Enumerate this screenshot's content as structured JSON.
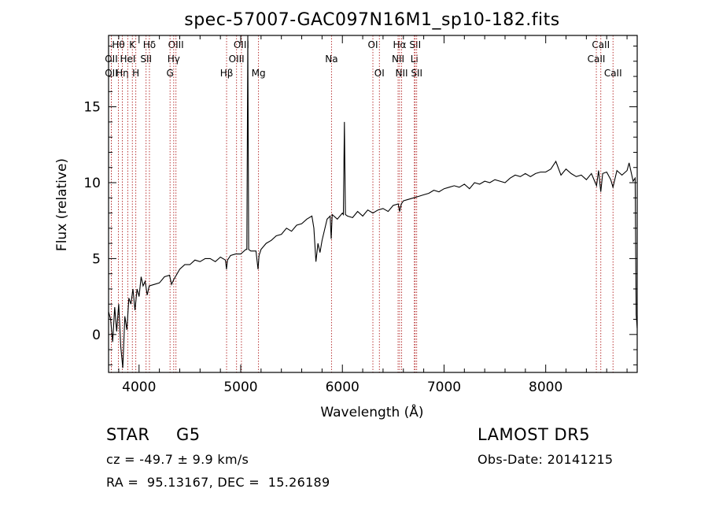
{
  "chart_data": {
    "type": "line",
    "title": "spec-57007-GAC097N16M1_sp10-182.fits",
    "xlabel": "Wavelength (Å)",
    "ylabel": "Flux (relative)",
    "xlim": [
      3700,
      8900
    ],
    "ylim": [
      -2.5,
      19.7
    ],
    "xticks": [
      4000,
      5000,
      6000,
      7000,
      8000
    ],
    "yticks": [
      0,
      5,
      10,
      15
    ],
    "grid": false,
    "series": [
      {
        "name": "",
        "points": [
          [
            3700,
            1.5
          ],
          [
            3720,
            1.0
          ],
          [
            3740,
            -0.5
          ],
          [
            3760,
            1.8
          ],
          [
            3780,
            0.2
          ],
          [
            3800,
            2.0
          ],
          [
            3820,
            -0.8
          ],
          [
            3840,
            -2.2
          ],
          [
            3860,
            1.2
          ],
          [
            3880,
            0.3
          ],
          [
            3900,
            2.4
          ],
          [
            3920,
            2.0
          ],
          [
            3940,
            3.0
          ],
          [
            3960,
            1.6
          ],
          [
            3980,
            3.0
          ],
          [
            4000,
            2.5
          ],
          [
            4020,
            3.8
          ],
          [
            4040,
            3.2
          ],
          [
            4060,
            3.5
          ],
          [
            4080,
            2.6
          ],
          [
            4100,
            3.2
          ],
          [
            4150,
            3.3
          ],
          [
            4200,
            3.4
          ],
          [
            4250,
            3.8
          ],
          [
            4300,
            3.9
          ],
          [
            4320,
            3.3
          ],
          [
            4340,
            3.6
          ],
          [
            4400,
            4.3
          ],
          [
            4450,
            4.6
          ],
          [
            4500,
            4.6
          ],
          [
            4550,
            4.9
          ],
          [
            4600,
            4.8
          ],
          [
            4650,
            5.0
          ],
          [
            4700,
            5.0
          ],
          [
            4750,
            4.8
          ],
          [
            4800,
            5.1
          ],
          [
            4850,
            4.9
          ],
          [
            4860,
            4.3
          ],
          [
            4870,
            4.9
          ],
          [
            4900,
            5.2
          ],
          [
            4950,
            5.3
          ],
          [
            5000,
            5.3
          ],
          [
            5050,
            5.6
          ],
          [
            5060,
            5.6
          ],
          [
            5070,
            19.7
          ],
          [
            5078,
            5.6
          ],
          [
            5100,
            5.5
          ],
          [
            5150,
            5.5
          ],
          [
            5170,
            4.3
          ],
          [
            5180,
            5.2
          ],
          [
            5200,
            5.6
          ],
          [
            5250,
            6.0
          ],
          [
            5300,
            6.2
          ],
          [
            5350,
            6.5
          ],
          [
            5400,
            6.6
          ],
          [
            5450,
            7.0
          ],
          [
            5500,
            6.8
          ],
          [
            5550,
            7.2
          ],
          [
            5600,
            7.3
          ],
          [
            5650,
            7.6
          ],
          [
            5700,
            7.8
          ],
          [
            5720,
            7.0
          ],
          [
            5740,
            4.8
          ],
          [
            5760,
            6.0
          ],
          [
            5780,
            5.4
          ],
          [
            5800,
            6.2
          ],
          [
            5850,
            7.6
          ],
          [
            5880,
            7.8
          ],
          [
            5890,
            6.3
          ],
          [
            5900,
            7.9
          ],
          [
            5950,
            7.6
          ],
          [
            6000,
            8.0
          ],
          [
            6010,
            7.9
          ],
          [
            6020,
            14.0
          ],
          [
            6030,
            7.9
          ],
          [
            6050,
            7.8
          ],
          [
            6100,
            7.7
          ],
          [
            6150,
            8.1
          ],
          [
            6200,
            7.8
          ],
          [
            6250,
            8.2
          ],
          [
            6300,
            8.0
          ],
          [
            6350,
            8.2
          ],
          [
            6400,
            8.3
          ],
          [
            6450,
            8.1
          ],
          [
            6500,
            8.5
          ],
          [
            6550,
            8.6
          ],
          [
            6563,
            8.1
          ],
          [
            6580,
            8.6
          ],
          [
            6600,
            8.8
          ],
          [
            6650,
            8.9
          ],
          [
            6700,
            9.0
          ],
          [
            6750,
            9.1
          ],
          [
            6800,
            9.2
          ],
          [
            6850,
            9.3
          ],
          [
            6900,
            9.5
          ],
          [
            6950,
            9.4
          ],
          [
            7000,
            9.6
          ],
          [
            7050,
            9.7
          ],
          [
            7100,
            9.8
          ],
          [
            7150,
            9.7
          ],
          [
            7200,
            9.9
          ],
          [
            7250,
            9.6
          ],
          [
            7300,
            10.0
          ],
          [
            7350,
            9.9
          ],
          [
            7400,
            10.1
          ],
          [
            7450,
            10.0
          ],
          [
            7500,
            10.2
          ],
          [
            7550,
            10.1
          ],
          [
            7600,
            10.0
          ],
          [
            7650,
            10.3
          ],
          [
            7700,
            10.5
          ],
          [
            7750,
            10.4
          ],
          [
            7800,
            10.6
          ],
          [
            7850,
            10.4
          ],
          [
            7900,
            10.6
          ],
          [
            7950,
            10.7
          ],
          [
            8000,
            10.7
          ],
          [
            8050,
            10.9
          ],
          [
            8100,
            11.4
          ],
          [
            8150,
            10.5
          ],
          [
            8200,
            10.9
          ],
          [
            8250,
            10.6
          ],
          [
            8300,
            10.4
          ],
          [
            8350,
            10.5
          ],
          [
            8400,
            10.2
          ],
          [
            8450,
            10.6
          ],
          [
            8500,
            9.8
          ],
          [
            8520,
            10.8
          ],
          [
            8542,
            9.4
          ],
          [
            8560,
            10.6
          ],
          [
            8600,
            10.7
          ],
          [
            8640,
            10.2
          ],
          [
            8662,
            9.7
          ],
          [
            8700,
            10.8
          ],
          [
            8750,
            10.5
          ],
          [
            8800,
            10.8
          ],
          [
            8820,
            11.3
          ],
          [
            8860,
            10.1
          ],
          [
            8880,
            10.3
          ],
          [
            8890,
            1.3
          ],
          [
            8900,
            0.4
          ]
        ]
      }
    ],
    "lines": [
      {
        "label": "Hθ",
        "x": 3797,
        "row": 0
      },
      {
        "label": "OII",
        "x": 3727,
        "row": 1
      },
      {
        "label": "OII",
        "x": 3727,
        "row": 2
      },
      {
        "label": "Hη",
        "x": 3835,
        "row": 2
      },
      {
        "label": "HeI",
        "x": 3889,
        "row": 1
      },
      {
        "label": "K",
        "x": 3934,
        "row": 0
      },
      {
        "label": "H",
        "x": 3968,
        "row": 2
      },
      {
        "label": "Hδ",
        "x": 4102,
        "row": 0
      },
      {
        "label": "SII",
        "x": 4069,
        "row": 1
      },
      {
        "label": "OIII",
        "x": 4363,
        "row": 0
      },
      {
        "label": "Hγ",
        "x": 4341,
        "row": 1
      },
      {
        "label": "G",
        "x": 4305,
        "row": 2
      },
      {
        "label": "Hβ",
        "x": 4861,
        "row": 2
      },
      {
        "label": "OIII",
        "x": 5007,
        "row": 0
      },
      {
        "label": "OIII",
        "x": 4959,
        "row": 1
      },
      {
        "label": "Mg",
        "x": 5175,
        "row": 2
      },
      {
        "label": "Na",
        "x": 5893,
        "row": 1
      },
      {
        "label": "OI",
        "x": 6300,
        "row": 0
      },
      {
        "label": "OI",
        "x": 6364,
        "row": 2
      },
      {
        "label": "Hα",
        "x": 6563,
        "row": 0
      },
      {
        "label": "NII",
        "x": 6548,
        "row": 1
      },
      {
        "label": "NII",
        "x": 6583,
        "row": 2
      },
      {
        "label": "SII",
        "x": 6716,
        "row": 0
      },
      {
        "label": "Li",
        "x": 6708,
        "row": 1
      },
      {
        "label": "SII",
        "x": 6731,
        "row": 2
      },
      {
        "label": "CaII",
        "x": 8542,
        "row": 0
      },
      {
        "label": "CaII",
        "x": 8498,
        "row": 1
      },
      {
        "label": "CaII",
        "x": 8662,
        "row": 2
      }
    ]
  },
  "info": {
    "object_class": "STAR",
    "subclass": "G5",
    "survey": "LAMOST DR5",
    "cz_text": "cz = -49.7 ± 9.9 km/s",
    "obs_date": "Obs-Date: 20141215",
    "coords_text": "RA =  95.13167, DEC =  15.26189"
  },
  "colors": {
    "axis": "#000000",
    "spectrum": "#000000",
    "lines": "#b22222"
  }
}
